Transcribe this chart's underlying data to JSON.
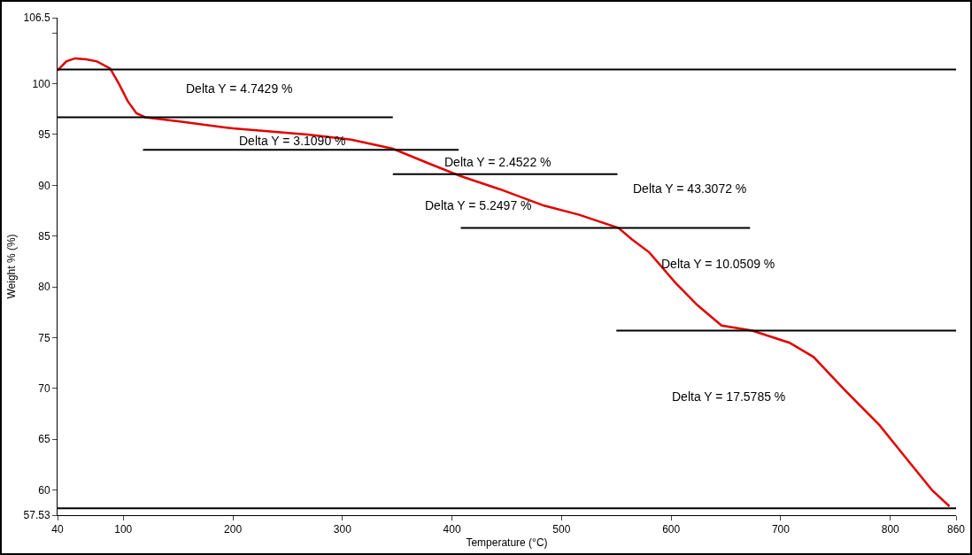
{
  "chart_data": {
    "type": "line",
    "xlabel": "Temperature (°C)",
    "ylabel": "Weight % (%)",
    "xlim": [
      40,
      860
    ],
    "xticks": [
      40,
      100,
      200,
      300,
      400,
      500,
      600,
      700,
      800,
      860
    ],
    "ylim": [
      57.53,
      106.5
    ],
    "yticks": [
      57.53,
      60,
      65,
      70,
      75,
      80,
      85,
      90,
      95,
      100,
      {
        "value": 105,
        "label": null
      },
      106.5
    ],
    "grid": false,
    "marker": "none",
    "line_style": "solid",
    "series": [
      {
        "color": "#e00000",
        "x": [
          40,
          48,
          56,
          66,
          76,
          88,
          96,
          104,
          112,
          120,
          150,
          200,
          268,
          284,
          308,
          346,
          380,
          408,
          444,
          484,
          516,
          552,
          564,
          580,
          604,
          624,
          646,
          674,
          708,
          730,
          758,
          790,
          814,
          838,
          854
        ],
        "values": [
          101.3,
          102.2,
          102.5,
          102.4,
          102.2,
          101.5,
          100,
          98.3,
          97.1,
          96.7,
          96.3,
          95.6,
          95.0,
          94.8,
          94.5,
          93.6,
          92.1,
          90.9,
          89.6,
          88.0,
          87.1,
          85.8,
          84.7,
          83.4,
          80.4,
          78.2,
          76.2,
          75.7,
          74.5,
          73.1,
          69.9,
          66.4,
          63.2,
          60.0,
          58.4
        ]
      },
      {
        "color": "#000000",
        "x": [
          40,
          860
        ],
        "values": [
          101.4,
          101.4
        ]
      },
      {
        "color": "#000000",
        "x": [
          40,
          346
        ],
        "values": [
          96.7,
          96.7
        ]
      },
      {
        "color": "#000000",
        "x": [
          118,
          406
        ],
        "values": [
          93.5,
          93.5
        ]
      },
      {
        "color": "#000000",
        "x": [
          346,
          551
        ],
        "values": [
          91.1,
          91.1
        ]
      },
      {
        "color": "#000000",
        "x": [
          408,
          672
        ],
        "values": [
          85.8,
          85.8
        ]
      },
      {
        "color": "#000000",
        "x": [
          550,
          860
        ],
        "values": [
          75.7,
          75.7
        ]
      },
      {
        "color": "#000000",
        "x": [
          40,
          860
        ],
        "values": [
          58.2,
          58.2
        ]
      }
    ],
    "annotations": [
      "Delta Y = 4.7429 %",
      "Delta Y = 3.1090 %",
      "Delta Y = 2.4522 %",
      "Delta Y = 5.2497 %",
      "Delta Y = 43.3072 %",
      "Delta Y = 10.0509 %",
      "Delta Y = 17.5785 %"
    ]
  }
}
